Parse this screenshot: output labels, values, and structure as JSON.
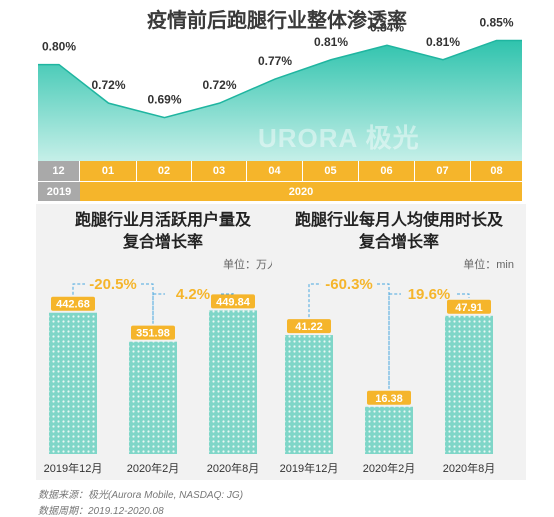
{
  "title": "疫情前后跑腿行业整体渗透率",
  "watermark": "URORA 极光",
  "colors": {
    "teal": "#3cc6b4",
    "teal_light": "#a9e6dc",
    "gold": "#f5b52b",
    "gray": "#a9a9a9",
    "panel_bg": "#f2f2f2",
    "pct_text": "#f5b52b"
  },
  "timeline": {
    "months": [
      {
        "label": "12",
        "style": "gray"
      },
      {
        "label": "01",
        "style": "gold"
      },
      {
        "label": "02",
        "style": "gold"
      },
      {
        "label": "03",
        "style": "gold"
      },
      {
        "label": "04",
        "style": "gold"
      },
      {
        "label": "05",
        "style": "gold"
      },
      {
        "label": "06",
        "style": "gold"
      },
      {
        "label": "07",
        "style": "gold"
      },
      {
        "label": "08",
        "style": "gold"
      }
    ],
    "years": [
      {
        "label": "2019",
        "style": "gray",
        "span": 1
      },
      {
        "label": "2020",
        "style": "gold",
        "span": 8
      }
    ]
  },
  "chart_data": [
    {
      "type": "area",
      "title": "疫情前后跑腿行业整体渗透率",
      "categories": [
        "12",
        "01",
        "02",
        "03",
        "04",
        "05",
        "06",
        "07",
        "08"
      ],
      "values": [
        0.8,
        0.72,
        0.69,
        0.72,
        0.77,
        0.81,
        0.84,
        0.81,
        0.85
      ],
      "labels": [
        "0.80%",
        "0.72%",
        "0.69%",
        "0.72%",
        "0.77%",
        "0.81%",
        "0.84%",
        "0.81%",
        "0.85%"
      ],
      "unit": "%"
    },
    {
      "type": "bar",
      "title": "跑腿行业月活跃用户量及复合增长率",
      "unit_label": "单位：万人",
      "categories": [
        "2019年12月",
        "2020年2月",
        "2020年8月"
      ],
      "values": [
        442.68,
        351.98,
        449.84
      ],
      "value_labels": [
        "442.68",
        "351.98",
        "449.84"
      ],
      "growth_labels": [
        "-20.5%",
        "4.2%"
      ]
    },
    {
      "type": "bar",
      "title": "跑腿行业每月人均使用时长及复合增长率",
      "unit_label": "单位：min",
      "categories": [
        "2019年12月",
        "2020年2月",
        "2020年8月"
      ],
      "values": [
        41.22,
        16.38,
        47.91
      ],
      "value_labels": [
        "41.22",
        "16.38",
        "47.91"
      ],
      "growth_labels": [
        "-60.3%",
        "19.6%"
      ]
    }
  ],
  "panels": [
    {
      "title_line1": "跑腿行业月活跃用户量及",
      "title_line2": "复合增长率",
      "unit": "单位：万人"
    },
    {
      "title_line1": "跑腿行业每月人均使用时长及",
      "title_line2": "复合增长率",
      "unit": "单位：min"
    }
  ],
  "source": {
    "line1": "数据来源：极光(Aurora Mobile, NASDAQ: JG)",
    "line2": "数据周期：2019.12-2020.08"
  }
}
